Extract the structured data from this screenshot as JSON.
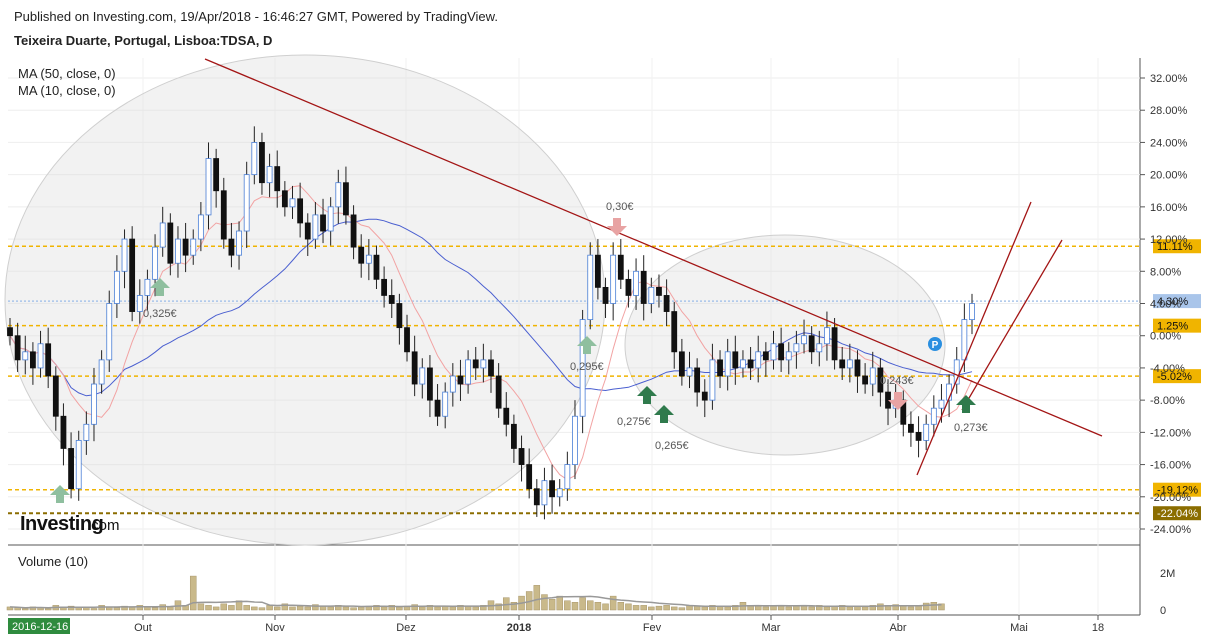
{
  "header": {
    "published": "Published on Investing.com, 19/Apr/2018 - 16:46:27 GMT, Powered by TradingView.",
    "instrument": "Teixeira Duarte, Portugal, Lisboa:TDSA, D"
  },
  "indicators": {
    "ma50": "MA (50, close, 0)",
    "ma10": "MA (10, close, 0)"
  },
  "logo": {
    "brand": "Investing",
    "suffix": ".com"
  },
  "volume": {
    "label": "Volume (10)",
    "ticks": [
      "2M",
      "0"
    ]
  },
  "xaxis": {
    "start_label": "2016-12-16",
    "months": [
      "Out",
      "Nov",
      "Dez",
      "2018",
      "Fev",
      "Mar",
      "Abr",
      "Mai",
      "18"
    ]
  },
  "chart_data": {
    "type": "candlestick",
    "ylabel_unit": "%",
    "y_ticks": [
      "32.00%",
      "28.00%",
      "24.00%",
      "20.00%",
      "16.00%",
      "12.00%",
      "8.00%",
      "4.00%",
      "0.00%",
      "-4.00%",
      "-8.00%",
      "-12.00%",
      "-16.00%",
      "-20.00%",
      "-24.00%"
    ],
    "ylim": [
      -24,
      32
    ],
    "levels": [
      {
        "label": "11.11%",
        "value": 11.11,
        "color": "#f0b400"
      },
      {
        "label": "4.30%",
        "value": 4.3,
        "color": "#a9c5ea"
      },
      {
        "label": "1.25%",
        "value": 1.25,
        "color": "#f0b400"
      },
      {
        "label": "-5.02%",
        "value": -5.02,
        "color": "#f0b400"
      },
      {
        "label": "-19.12%",
        "value": -19.12,
        "color": "#f0b400"
      },
      {
        "label": "-22.04%",
        "value": -22.04,
        "color": "#8b6d00"
      }
    ],
    "annotations": [
      "0,325€",
      "0,30€",
      "0,295€",
      "0,275€",
      "0,265€",
      "0,243€",
      "0,273€"
    ],
    "candles_close": [
      0,
      -3,
      -2,
      -4,
      -1,
      -5,
      -10,
      -14,
      -19,
      -13,
      -11,
      -6,
      -3,
      4,
      8,
      12,
      3,
      5,
      7,
      11,
      14,
      9,
      12,
      10,
      12,
      15,
      22,
      18,
      12,
      10,
      13,
      20,
      24,
      19,
      21,
      18,
      16,
      17,
      14,
      12,
      15,
      13,
      16,
      19,
      15,
      11,
      9,
      10,
      7,
      5,
      4,
      1,
      -2,
      -6,
      -4,
      -8,
      -10,
      -7,
      -5,
      -6,
      -3,
      -4,
      -3,
      -5,
      -9,
      -11,
      -14,
      -16,
      -19,
      -21,
      -18,
      -20,
      -19,
      -16,
      -10,
      2,
      10,
      6,
      4,
      10,
      7,
      5,
      8,
      4,
      6,
      5,
      3,
      -2,
      -5,
      -4,
      -7,
      -8,
      -3,
      -5,
      -2,
      -4,
      -3,
      -4,
      -2,
      -3,
      -1,
      -3,
      -2,
      -1,
      0,
      -2,
      -1,
      1,
      -3,
      -4,
      -3,
      -5,
      -6,
      -4,
      -7,
      -9,
      -8,
      -11,
      -12,
      -13,
      -11,
      -9,
      -8,
      -6,
      -3,
      2,
      4
    ],
    "volume_values": [
      0.2,
      0.15,
      0.1,
      0.2,
      0.15,
      0.1,
      0.3,
      0.2,
      0.25,
      0.15,
      0.2,
      0.1,
      0.3,
      0.2,
      0.15,
      0.25,
      0.2,
      0.3,
      0.2,
      0.15,
      0.35,
      0.2,
      0.6,
      0.3,
      2.2,
      0.4,
      0.3,
      0.2,
      0.4,
      0.3,
      0.6,
      0.3,
      0.2,
      0.15,
      0.3,
      0.2,
      0.4,
      0.2,
      0.25,
      0.2,
      0.35,
      0.25,
      0.2,
      0.3,
      0.2,
      0.15,
      0.2,
      0.25,
      0.3,
      0.2,
      0.3,
      0.2,
      0.25,
      0.35,
      0.2,
      0.3,
      0.2,
      0.25,
      0.2,
      0.3,
      0.25,
      0.2,
      0.3,
      0.6,
      0.4,
      0.8,
      0.5,
      0.9,
      1.2,
      1.6,
      1.0,
      0.7,
      0.9,
      0.6,
      0.5,
      0.8,
      0.6,
      0.5,
      0.4,
      0.9,
      0.5,
      0.4,
      0.3,
      0.3,
      0.2,
      0.25,
      0.3,
      0.2,
      0.15,
      0.3,
      0.25,
      0.2,
      0.3,
      0.25,
      0.2,
      0.3,
      0.5,
      0.3,
      0.25,
      0.2,
      0.3,
      0.25,
      0.2,
      0.3,
      0.25,
      0.2,
      0.3,
      0.2,
      0.25,
      0.3,
      0.2,
      0.25,
      0.2,
      0.3,
      0.4,
      0.3,
      0.35,
      0.25,
      0.2,
      0.3,
      0.45,
      0.5,
      0.4
    ],
    "volume_ylim": [
      0,
      2.4
    ]
  }
}
